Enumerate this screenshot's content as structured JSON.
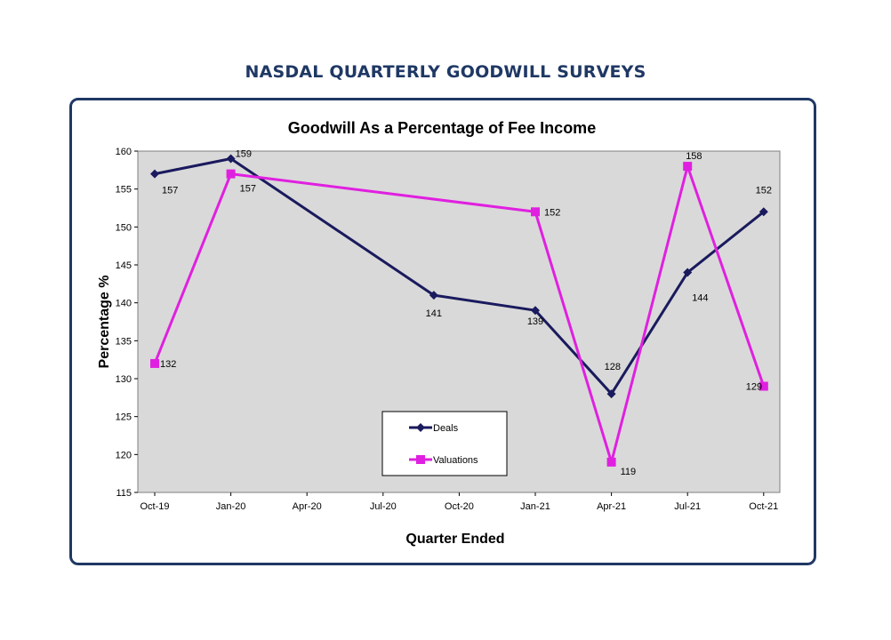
{
  "page": {
    "heading": "NASDAL QUARTERLY GOODWILL SURVEYS"
  },
  "chart_data": {
    "type": "line",
    "title": "Goodwill As a Percentage of Fee Income",
    "xlabel": "Quarter Ended",
    "ylabel": "Percentage %",
    "ylim": [
      115,
      160
    ],
    "yticks": [
      115,
      120,
      125,
      130,
      135,
      140,
      145,
      150,
      155,
      160
    ],
    "xticks": [
      "Oct-19",
      "Jan-20",
      "Apr-20",
      "Jul-20",
      "Oct-20",
      "Jan-21",
      "Apr-21",
      "Jul-21",
      "Oct-21"
    ],
    "grid": false,
    "legend_position": "bottom-center",
    "series": [
      {
        "name": "Deals",
        "color": "#1a1a5e",
        "marker": "diamond",
        "points": [
          {
            "x": "Oct-19",
            "y": 157,
            "label": "157"
          },
          {
            "x": "Jan-20",
            "y": 159,
            "label": "159"
          },
          {
            "x": "Sep-20",
            "y": 141,
            "label": "141"
          },
          {
            "x": "Jan-21",
            "y": 139,
            "label": "139"
          },
          {
            "x": "Apr-21",
            "y": 128,
            "label": "128"
          },
          {
            "x": "Jul-21",
            "y": 144,
            "label": "144"
          },
          {
            "x": "Oct-21",
            "y": 152,
            "label": "152"
          }
        ]
      },
      {
        "name": "Valuations",
        "color": "#e020e0",
        "marker": "square",
        "points": [
          {
            "x": "Oct-19",
            "y": 132,
            "label": "132"
          },
          {
            "x": "Jan-20",
            "y": 157,
            "label": "157"
          },
          {
            "x": "Jan-21",
            "y": 152,
            "label": "152"
          },
          {
            "x": "Apr-21",
            "y": 119,
            "label": "119"
          },
          {
            "x": "Jul-21",
            "y": 158,
            "label": "158"
          },
          {
            "x": "Oct-21",
            "y": 129,
            "label": "129"
          }
        ]
      }
    ]
  }
}
